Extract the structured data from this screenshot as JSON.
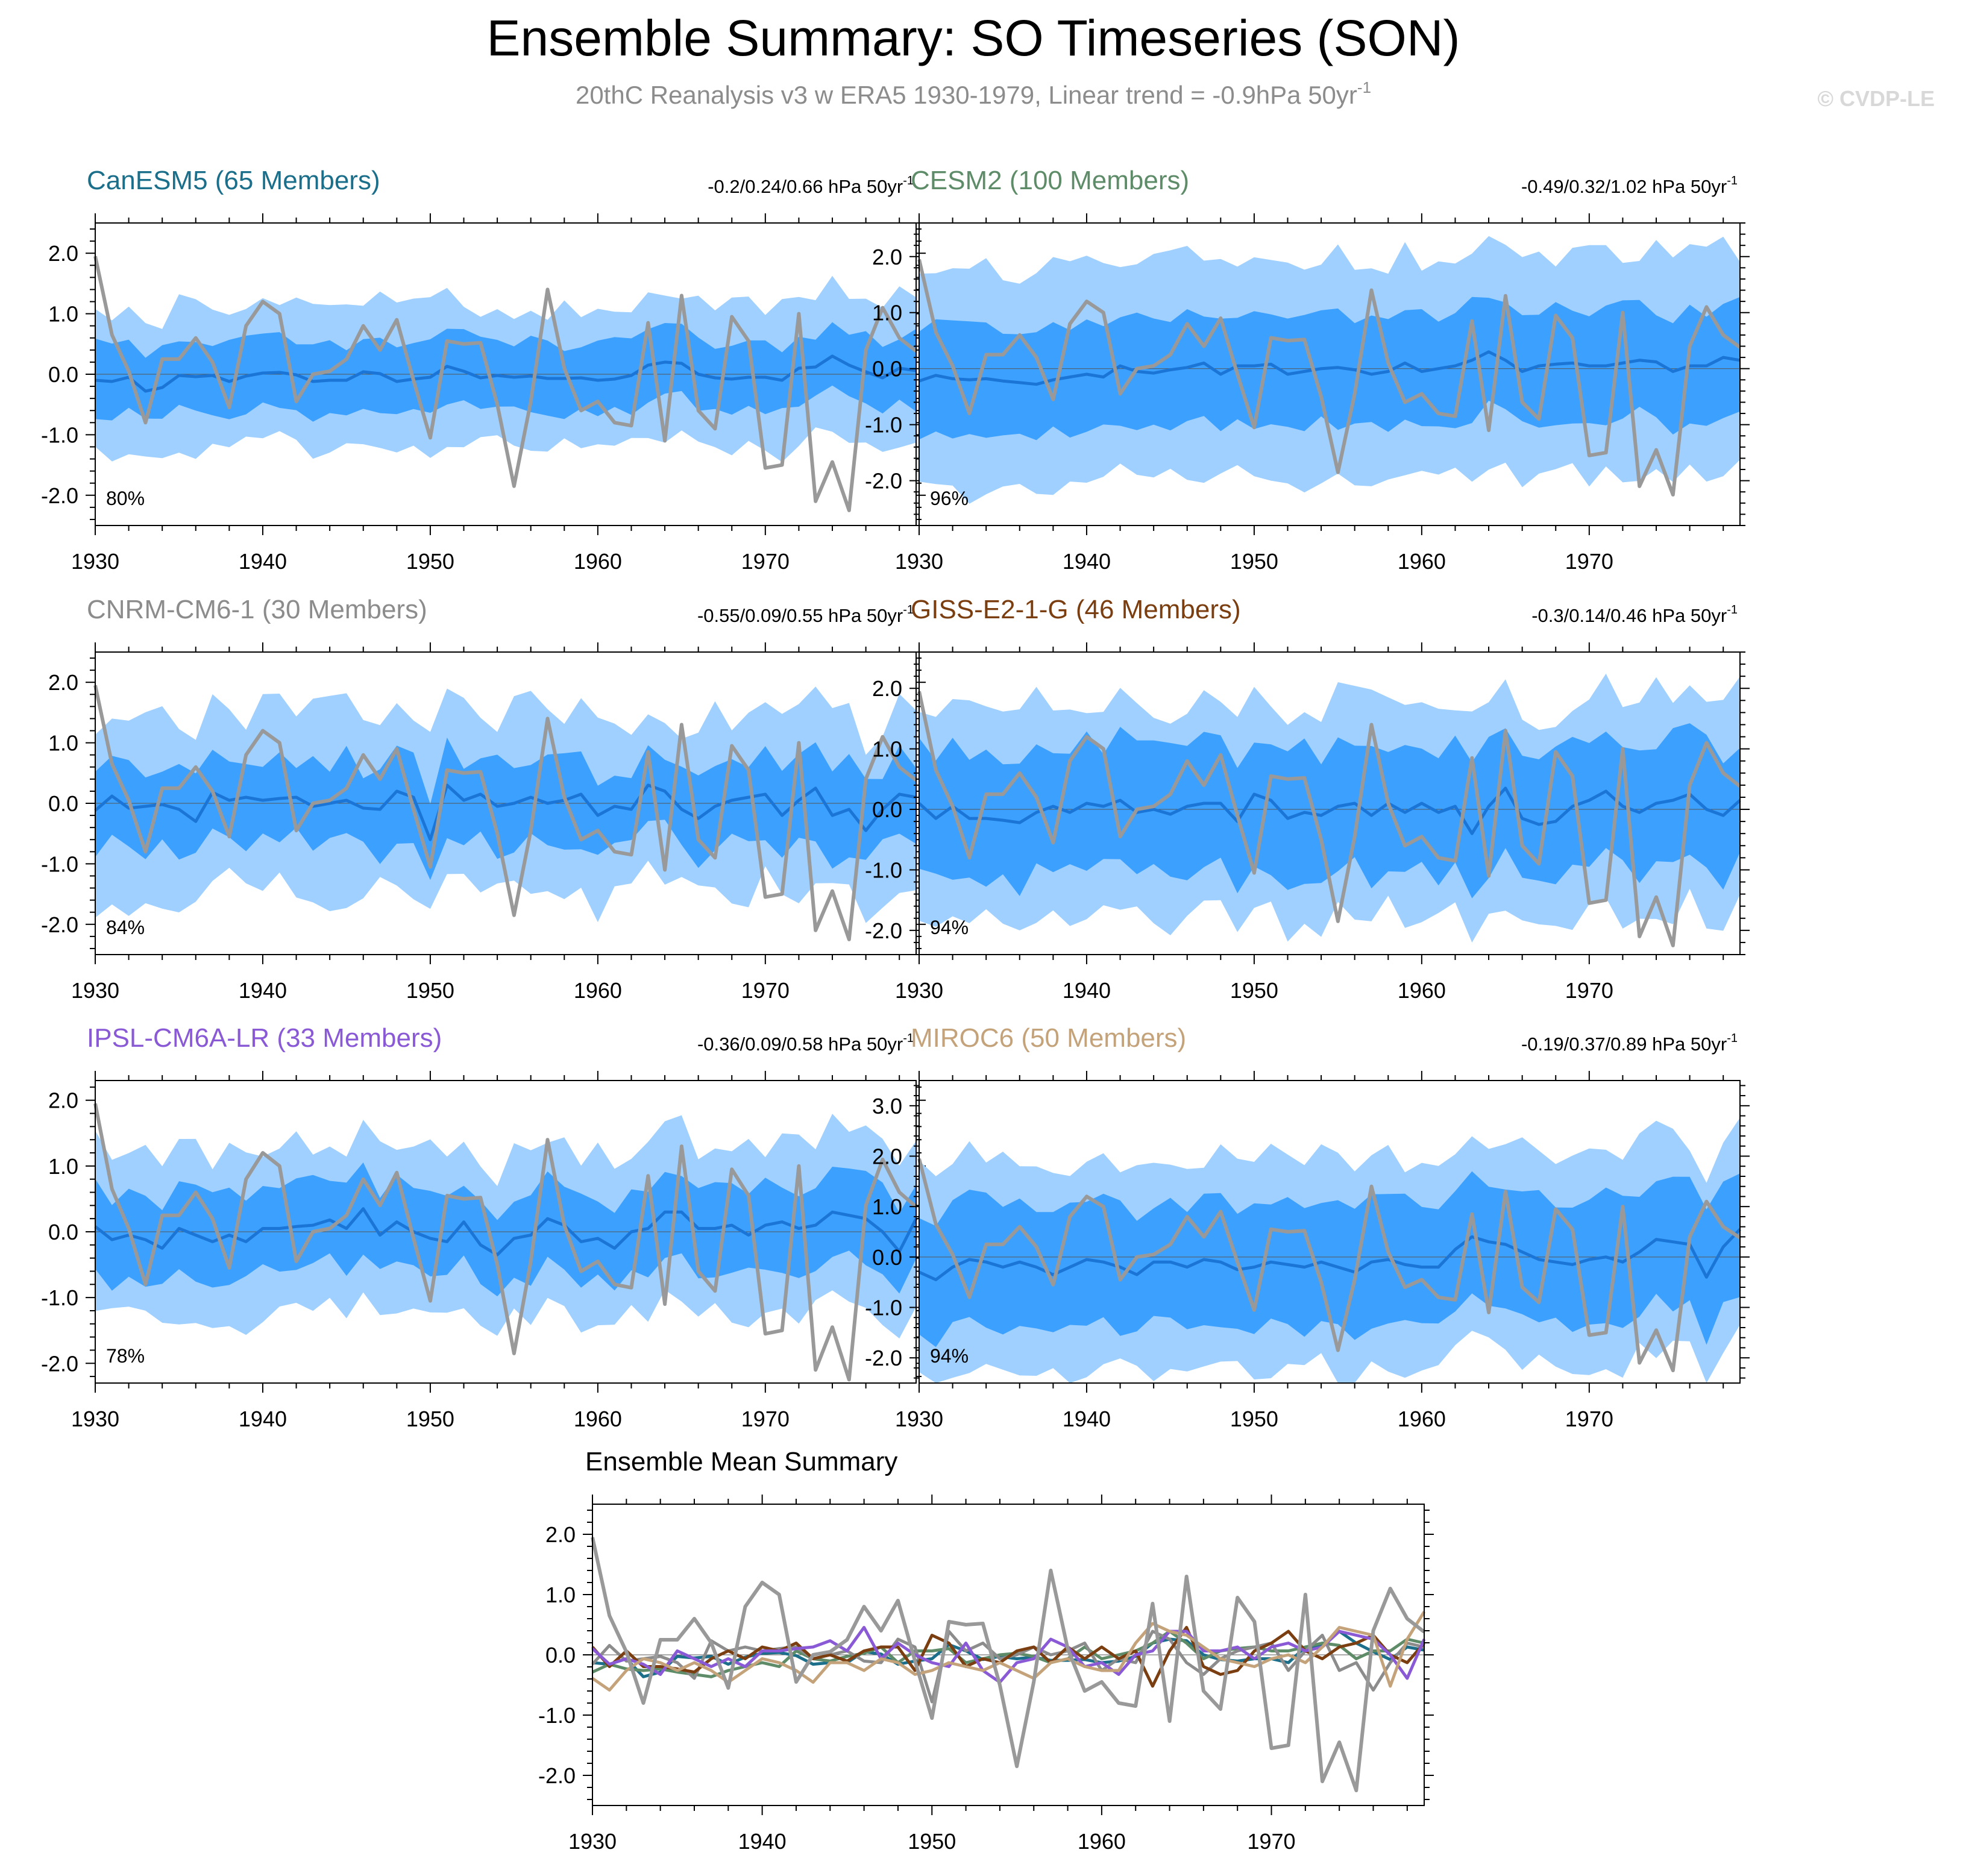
{
  "header": {
    "title": "Ensemble Summary: SO Timeseries (SON)",
    "subtitle_main": "20thC Reanalysis v3 w ERA5 1930-1979, Linear trend = -0.9hPa 50yr",
    "subtitle_sup": "-1",
    "watermark": "© CVDP-LE"
  },
  "trend_unit": "hPa 50yr",
  "trend_unit_sup": "-1",
  "colors": {
    "outer_band": "#9fd0ff",
    "inner_band": "#3ca0ff",
    "ens_mean": "#1a75d6",
    "obs": "#999999",
    "title_gray": "#8c8c8c"
  },
  "chart_data": [
    {
      "type": "line",
      "title": "CanESM5 (65 Members)",
      "title_color": "#1b6f8a",
      "trend_text": "-0.2/0.24/0.66",
      "pct_label": "80%",
      "ylim": [
        -2.5,
        2.5
      ],
      "yticks": [
        2.0,
        1.0,
        0.0,
        -1.0,
        -2.0
      ],
      "ytick_labels": [
        "2.0",
        "1.0",
        "0.0",
        "-1.0",
        "-2.0"
      ],
      "xlim": [
        1930,
        1979
      ],
      "xticks": [
        1930,
        1940,
        1950,
        1960,
        1970
      ],
      "xtick_labels": [
        "1930",
        "1940",
        "1950",
        "1960",
        "1970"
      ],
      "band_outer_amp": 1.1,
      "band_inner_amp": 0.55,
      "noise": 0.25,
      "seed": 1,
      "ens_mean": [
        -0.1,
        -0.12,
        -0.05,
        -0.28,
        -0.22,
        -0.02,
        -0.04,
        -0.02,
        -0.12,
        -0.03,
        0.02,
        0.03,
        -0.01,
        -0.12,
        -0.1,
        -0.1,
        0.04,
        0.01,
        -0.12,
        -0.08,
        -0.05,
        0.13,
        0.05,
        -0.06,
        -0.02,
        -0.05,
        -0.03,
        -0.07,
        -0.07,
        -0.06,
        -0.1,
        -0.08,
        -0.02,
        0.15,
        0.2,
        0.18,
        0.0,
        -0.06,
        -0.08,
        -0.05,
        -0.05,
        -0.1,
        0.1,
        0.12,
        0.3,
        0.15,
        0.04,
        -0.06,
        0.1,
        0.06
      ]
    },
    {
      "type": "line",
      "title": "CESM2 (100 Members)",
      "title_color": "#5e8c68",
      "trend_text": "-0.49/0.32/1.02",
      "pct_label": "96%",
      "ylim": [
        -2.8,
        2.6
      ],
      "yticks": [
        2.0,
        1.0,
        0.0,
        -1.0,
        -2.0
      ],
      "ytick_labels": [
        "2.0",
        "1.0",
        "0.0",
        "-1.0",
        "-2.0"
      ],
      "xlim": [
        1930,
        1979
      ],
      "xticks": [
        1930,
        1940,
        1950,
        1960,
        1970
      ],
      "xtick_labels": [
        "1930",
        "1940",
        "1950",
        "1960",
        "1970"
      ],
      "band_outer_amp": 1.9,
      "band_inner_amp": 0.95,
      "noise": 0.3,
      "seed": 2,
      "ens_mean": [
        -0.22,
        -0.12,
        -0.18,
        -0.2,
        -0.18,
        -0.22,
        -0.25,
        -0.28,
        -0.2,
        -0.15,
        -0.1,
        -0.15,
        0.05,
        -0.05,
        -0.08,
        -0.02,
        0.02,
        0.1,
        -0.1,
        0.05,
        0.05,
        0.08,
        -0.1,
        -0.05,
        0.0,
        0.02,
        -0.02,
        -0.1,
        -0.05,
        0.1,
        -0.05,
        0.0,
        0.05,
        0.15,
        0.3,
        0.15,
        -0.05,
        0.05,
        0.08,
        0.1,
        0.05,
        0.05,
        0.1,
        0.15,
        0.12,
        -0.05,
        0.05,
        0.05,
        0.2,
        0.15
      ]
    },
    {
      "type": "line",
      "title": "CNRM-CM6-1 (30 Members)",
      "title_color": "#8c8c8c",
      "trend_text": "-0.55/0.09/0.55",
      "pct_label": "84%",
      "ylim": [
        -2.5,
        2.5
      ],
      "yticks": [
        2.0,
        1.0,
        0.0,
        -1.0,
        -2.0
      ],
      "ytick_labels": [
        "2.0",
        "1.0",
        "0.0",
        "-1.0",
        "-2.0"
      ],
      "xlim": [
        1930,
        1979
      ],
      "xticks": [
        1930,
        1940,
        1950,
        1960,
        1970
      ],
      "xtick_labels": [
        "1930",
        "1940",
        "1950",
        "1960",
        "1970"
      ],
      "band_outer_amp": 1.35,
      "band_inner_amp": 0.65,
      "noise": 0.45,
      "seed": 3,
      "ens_mean": [
        -0.12,
        0.12,
        -0.08,
        -0.05,
        -0.02,
        -0.1,
        -0.3,
        0.18,
        0.05,
        0.1,
        0.05,
        0.08,
        0.1,
        -0.05,
        0.0,
        0.05,
        -0.08,
        -0.1,
        0.2,
        0.1,
        -0.6,
        0.3,
        0.05,
        0.15,
        -0.05,
        0.0,
        0.1,
        0.0,
        0.05,
        0.15,
        -0.2,
        -0.05,
        -0.1,
        0.3,
        0.2,
        -0.1,
        -0.25,
        -0.05,
        0.05,
        0.1,
        0.15,
        -0.2,
        0.05,
        0.25,
        -0.2,
        -0.1,
        -0.45,
        -0.1,
        0.15,
        0.1
      ]
    },
    {
      "type": "line",
      "title": "GISS-E2-1-G (46 Members)",
      "title_color": "#7a3e10",
      "trend_text": "-0.3/0.14/0.46",
      "pct_label": "94%",
      "ylim": [
        -2.4,
        2.6
      ],
      "yticks": [
        2.0,
        1.0,
        0.0,
        -1.0,
        -2.0
      ],
      "ytick_labels": [
        "2.0",
        "1.0",
        "0.0",
        "-1.0",
        "-2.0"
      ],
      "xlim": [
        1930,
        1979
      ],
      "xticks": [
        1930,
        1940,
        1950,
        1960,
        1970
      ],
      "xtick_labels": [
        "1930",
        "1940",
        "1950",
        "1960",
        "1970"
      ],
      "band_outer_amp": 1.7,
      "band_inner_amp": 1.0,
      "noise": 0.4,
      "seed": 4,
      "ens_mean": [
        0.1,
        -0.15,
        0.05,
        -0.15,
        -0.15,
        -0.18,
        -0.22,
        -0.05,
        0.05,
        -0.05,
        0.1,
        0.05,
        0.15,
        -0.05,
        0.0,
        -0.08,
        0.05,
        0.1,
        0.1,
        -0.2,
        0.25,
        0.15,
        -0.15,
        -0.05,
        -0.1,
        0.05,
        0.1,
        -0.1,
        0.1,
        -0.05,
        0.1,
        -0.05,
        0.05,
        -0.4,
        0.05,
        0.35,
        -0.15,
        -0.25,
        -0.2,
        0.05,
        0.15,
        0.3,
        0.05,
        -0.05,
        0.1,
        0.15,
        0.25,
        0.0,
        -0.1,
        0.15
      ]
    },
    {
      "type": "line",
      "title": "IPSL-CM6A-LR (33 Members)",
      "title_color": "#8a5ad6",
      "trend_text": "-0.36/0.09/0.58",
      "pct_label": "78%",
      "ylim": [
        -2.3,
        2.3
      ],
      "yticks": [
        2.0,
        1.0,
        0.0,
        -1.0,
        -2.0
      ],
      "ytick_labels": [
        "2.0",
        "1.0",
        "0.0",
        "-1.0",
        "-2.0"
      ],
      "xlim": [
        1930,
        1979
      ],
      "xticks": [
        1930,
        1940,
        1950,
        1960,
        1970
      ],
      "xtick_labels": [
        "1930",
        "1940",
        "1950",
        "1960",
        "1970"
      ],
      "band_outer_amp": 1.2,
      "band_inner_amp": 0.6,
      "noise": 0.3,
      "seed": 5,
      "ens_mean": [
        0.08,
        -0.12,
        -0.05,
        -0.12,
        -0.25,
        0.05,
        -0.05,
        -0.15,
        -0.05,
        -0.15,
        0.05,
        0.05,
        0.08,
        0.1,
        0.18,
        0.05,
        0.35,
        -0.05,
        0.15,
        0.0,
        -0.1,
        -0.15,
        0.15,
        -0.2,
        -0.35,
        -0.1,
        -0.05,
        0.2,
        0.1,
        -0.15,
        -0.1,
        -0.25,
        0.0,
        0.05,
        0.3,
        0.3,
        0.05,
        0.05,
        0.1,
        -0.05,
        0.1,
        0.15,
        0.05,
        0.1,
        0.3,
        0.25,
        0.2,
        0.0,
        -0.3,
        0.2
      ]
    },
    {
      "type": "line",
      "title": "MIROC6 (50 Members)",
      "title_color": "#c4a27a",
      "trend_text": "-0.19/0.37/0.89",
      "pct_label": "94%",
      "ylim": [
        -2.5,
        3.5
      ],
      "yticks": [
        3.0,
        2.0,
        1.0,
        0.0,
        -1.0,
        -2.0
      ],
      "ytick_labels": [
        "3.0",
        "2.0",
        "1.0",
        "0.0",
        "-1.0",
        "-2.0"
      ],
      "xlim": [
        1930,
        1979
      ],
      "xticks": [
        1930,
        1940,
        1950,
        1960,
        1970
      ],
      "xtick_labels": [
        "1930",
        "1940",
        "1950",
        "1960",
        "1970"
      ],
      "band_outer_amp": 2.0,
      "band_inner_amp": 1.2,
      "noise": 0.35,
      "seed": 6,
      "ens_mean": [
        -0.3,
        -0.45,
        -0.2,
        -0.05,
        -0.1,
        -0.2,
        -0.1,
        -0.2,
        -0.35,
        -0.2,
        -0.05,
        -0.1,
        -0.2,
        -0.35,
        -0.1,
        -0.1,
        -0.2,
        -0.05,
        -0.1,
        -0.25,
        -0.2,
        -0.1,
        -0.15,
        -0.2,
        -0.1,
        -0.2,
        -0.3,
        -0.1,
        -0.05,
        -0.15,
        -0.2,
        -0.2,
        0.15,
        0.4,
        0.3,
        0.25,
        0.1,
        -0.05,
        -0.1,
        -0.15,
        -0.05,
        0.0,
        -0.1,
        0.1,
        0.35,
        0.3,
        0.25,
        -0.4,
        0.2,
        0.55
      ]
    },
    {
      "type": "line",
      "title": "Ensemble Mean Summary",
      "ylim": [
        -2.5,
        2.5
      ],
      "yticks": [
        2.0,
        1.0,
        0.0,
        -1.0,
        -2.0
      ],
      "ytick_labels": [
        "2.0",
        "1.0",
        "0.0",
        "-1.0",
        "-2.0"
      ],
      "xlim": [
        1930,
        1979
      ],
      "xticks": [
        1930,
        1940,
        1950,
        1960,
        1970
      ],
      "xtick_labels": [
        "1930",
        "1940",
        "1950",
        "1960",
        "1970"
      ],
      "series_note": "observations plus the six model ensemble means, coloured per model"
    }
  ],
  "observed": {
    "name": "20thC Reanalysis v3 w ERA5",
    "x_start": 1930,
    "values": [
      1.95,
      0.65,
      0.05,
      -0.8,
      0.25,
      0.25,
      0.6,
      0.2,
      -0.55,
      0.8,
      1.2,
      1.0,
      -0.45,
      0.0,
      0.05,
      0.25,
      0.8,
      0.4,
      0.9,
      -0.1,
      -1.05,
      0.55,
      0.5,
      0.52,
      -0.5,
      -1.85,
      -0.45,
      1.4,
      0.1,
      -0.6,
      -0.45,
      -0.8,
      -0.85,
      0.85,
      -1.1,
      1.3,
      -0.6,
      -0.9,
      0.95,
      0.55,
      -1.55,
      -1.5,
      1.0,
      -2.1,
      -1.45,
      -2.25,
      0.4,
      1.1,
      0.6,
      0.38
    ]
  }
}
